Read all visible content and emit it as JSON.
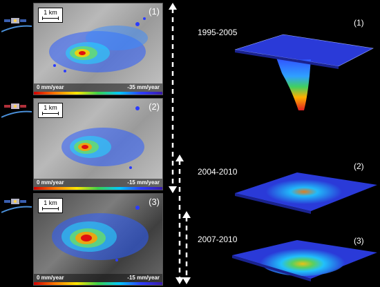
{
  "panels": [
    {
      "num": "(1)",
      "scale": "1 km",
      "legend_min": "0 mm/year",
      "legend_max": "-35 mm/year"
    },
    {
      "num": "(2)",
      "scale": "1 km",
      "legend_min": "0 mm/year",
      "legend_max": "-15 mm/year"
    },
    {
      "num": "(3)",
      "scale": "1 km",
      "legend_min": "0 mm/year",
      "legend_max": "-15 mm/year"
    }
  ],
  "models": [
    {
      "period": "1995-2005",
      "num": "(1)"
    },
    {
      "period": "2004-2010",
      "num": "(2)"
    },
    {
      "period": "2007-2010",
      "num": "(3)"
    }
  ],
  "colors": {
    "background": "#000000",
    "text": "#ffffff",
    "arrow": "#ffffff"
  },
  "icons": [
    "satellite-icon",
    "double-arrow-icon"
  ]
}
